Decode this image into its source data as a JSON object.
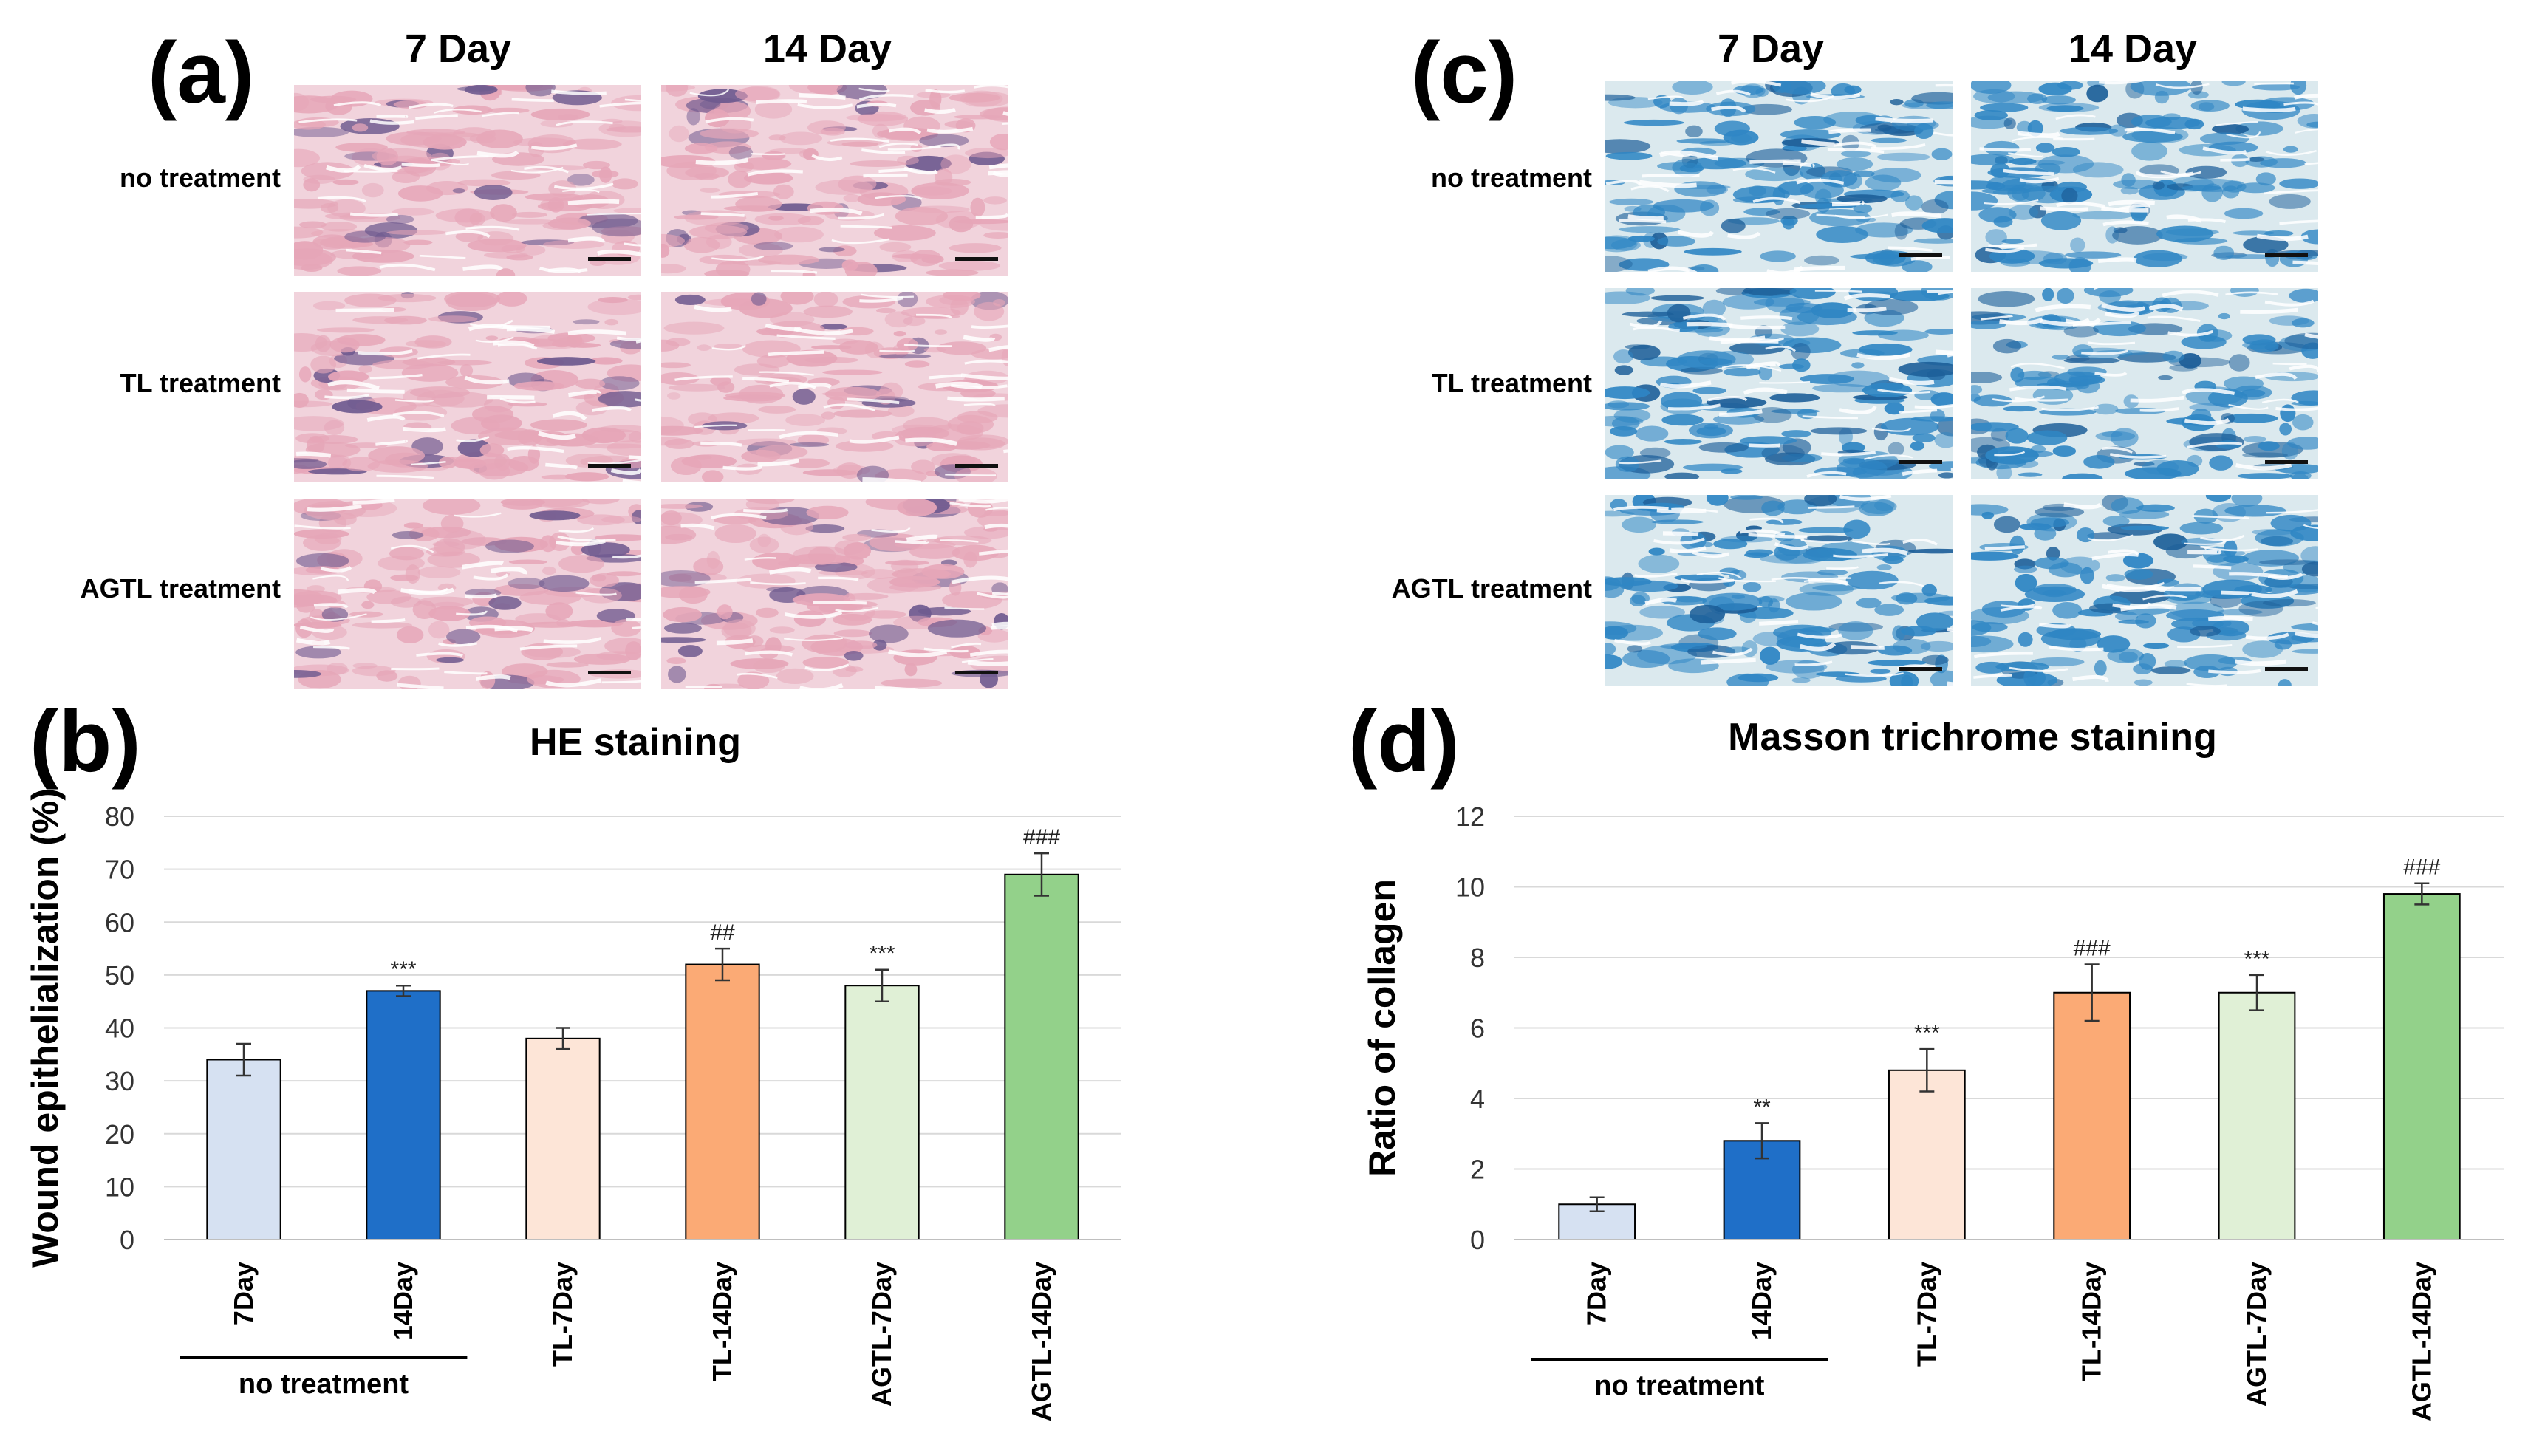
{
  "panels": {
    "a": {
      "letter": "(a)",
      "col_titles": [
        "7 Day",
        "14 Day"
      ],
      "row_labels": [
        "no treatment",
        "TL treatment",
        "AGTL treatment"
      ],
      "stain": "HE"
    },
    "c": {
      "letter": "(c)",
      "col_titles": [
        "7 Day",
        "14 Day"
      ],
      "row_labels": [
        "no treatment",
        "TL treatment",
        "AGTL treatment"
      ],
      "stain": "Masson"
    },
    "b": {
      "letter": "(b)"
    },
    "d": {
      "letter": "(d)"
    }
  },
  "colors": {
    "he_pink": "#e6a6b8",
    "he_purple": "#6f5a8f",
    "masson_blue": "#2f86c4",
    "masson_light": "#dbe9ee",
    "bar_edge": "#000000",
    "grid": "#d9d9d9"
  },
  "chart_data": [
    {
      "type": "bar",
      "title": "HE staining",
      "ylabel": "Wound epithelialization (%)",
      "categories": [
        "7Day",
        "14Day",
        "TL-7Day",
        "TL-14Day",
        "AGTL-7Day",
        "AGTL-14Day"
      ],
      "values": [
        34,
        47,
        38,
        52,
        48,
        69
      ],
      "errors": [
        3,
        1,
        2,
        3,
        3,
        4
      ],
      "annotations": [
        "",
        "***",
        "",
        "##",
        "***",
        "###"
      ],
      "bar_colors": [
        "#d6e1f2",
        "#1f6fc8",
        "#fde5d7",
        "#fbaa75",
        "#e0f0d6",
        "#93d18a"
      ],
      "ylim": [
        0,
        80
      ],
      "yticks": [
        0,
        10,
        20,
        30,
        40,
        50,
        60,
        70,
        80
      ],
      "group_label": "no treatment",
      "grid": true
    },
    {
      "type": "bar",
      "title": "Masson trichrome  staining",
      "ylabel": "Ratio of collagen",
      "categories": [
        "7Day",
        "14Day",
        "TL-7Day",
        "TL-14Day",
        "AGTL-7Day",
        "AGTL-14Day"
      ],
      "values": [
        1,
        2.8,
        4.8,
        7,
        7,
        9.8
      ],
      "errors": [
        0.2,
        0.5,
        0.6,
        0.8,
        0.5,
        0.3
      ],
      "annotations": [
        "",
        "**",
        "***",
        "###",
        "***",
        "###"
      ],
      "bar_colors": [
        "#d6e1f2",
        "#1f6fc8",
        "#fde5d7",
        "#fbaa75",
        "#e0f0d6",
        "#93d18a"
      ],
      "ylim": [
        0,
        12
      ],
      "yticks": [
        0,
        2,
        4,
        6,
        8,
        10,
        12
      ],
      "group_label": "no treatment",
      "grid": true
    }
  ]
}
